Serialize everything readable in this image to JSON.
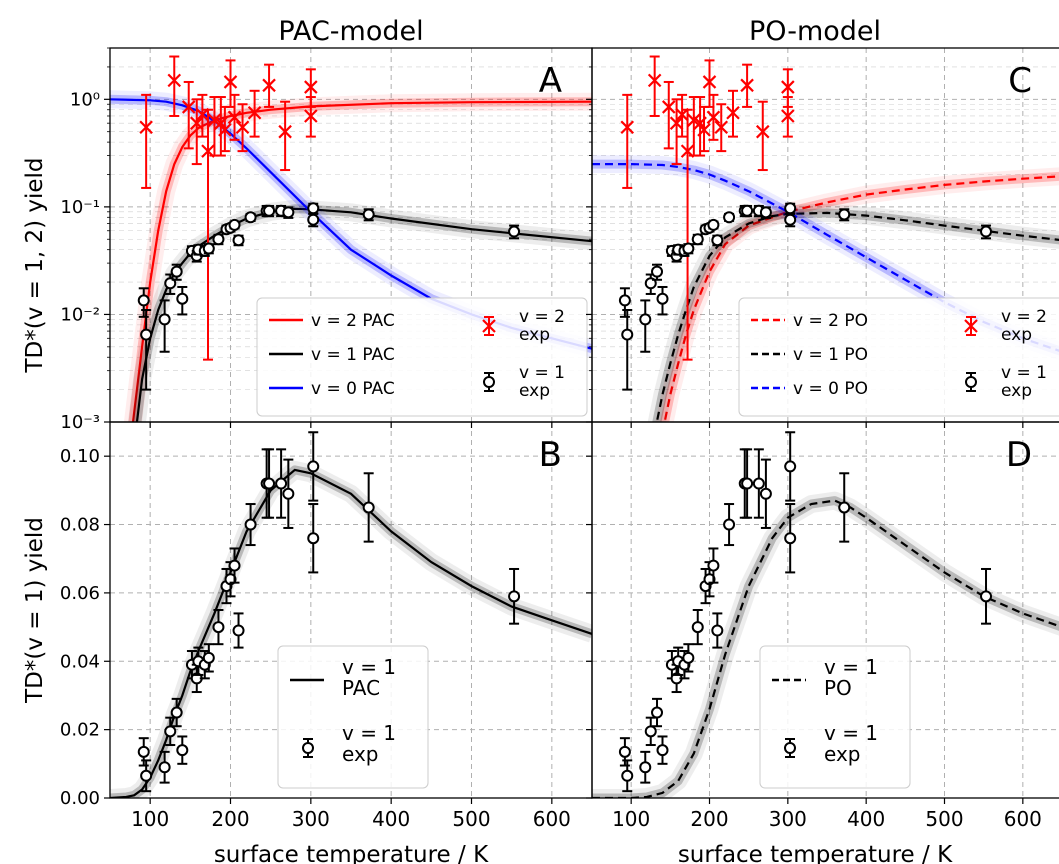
{
  "colors": {
    "red": "#ff0000",
    "black": "#000000",
    "blue": "#0000ff",
    "grid": "#b0b0b0"
  },
  "chart_data": [
    {
      "id": "A",
      "type": "line",
      "column_title": "PAC-model",
      "panel_letter": "A",
      "ylabel": "TD*(v = 1, 2) yield",
      "xlabel": "",
      "yscale": "log",
      "xlim": [
        50,
        650
      ],
      "ylim": [
        0.001,
        3
      ],
      "xticks": [
        100,
        200,
        300,
        400,
        500,
        600
      ],
      "yticks": [
        0.001,
        0.01,
        0.1,
        1
      ],
      "ytick_labels": [
        "10⁻³",
        "10⁻²",
        "10⁻¹",
        "10⁰"
      ],
      "grid": true,
      "legend_location": "lower right",
      "legend": [
        {
          "label": "v = 2 PAC",
          "color": "#ff0000",
          "style": "solid"
        },
        {
          "label": "v = 1 PAC",
          "color": "#000000",
          "style": "solid"
        },
        {
          "label": "v = 0 PAC",
          "color": "#0000ff",
          "style": "solid"
        },
        {
          "label": "v = 2 exp",
          "color": "#ff0000",
          "marker": "x"
        },
        {
          "label": "v = 1 exp",
          "color": "#000000",
          "marker": "o"
        }
      ],
      "series": [
        {
          "name": "v = 2 PAC",
          "color": "#ff0000",
          "dash": false,
          "band": true,
          "x": [
            75,
            90,
            100,
            110,
            120,
            130,
            140,
            150,
            160,
            180,
            200,
            220,
            250,
            300,
            400,
            500,
            650
          ],
          "y": [
            0.0006,
            0.005,
            0.02,
            0.06,
            0.14,
            0.25,
            0.36,
            0.46,
            0.54,
            0.64,
            0.7,
            0.75,
            0.8,
            0.86,
            0.92,
            0.94,
            0.95
          ]
        },
        {
          "name": "v = 1 PAC",
          "color": "#000000",
          "dash": false,
          "band": true,
          "x": [
            80,
            90,
            100,
            110,
            120,
            130,
            140,
            150,
            160,
            180,
            200,
            220,
            250,
            280,
            300,
            350,
            400,
            500,
            650
          ],
          "y": [
            0.0006,
            0.0025,
            0.006,
            0.011,
            0.017,
            0.024,
            0.03,
            0.037,
            0.043,
            0.054,
            0.066,
            0.078,
            0.09,
            0.096,
            0.095,
            0.089,
            0.078,
            0.062,
            0.048
          ]
        },
        {
          "name": "v = 0 PAC",
          "color": "#0000ff",
          "dash": false,
          "band": true,
          "x": [
            50,
            100,
            120,
            140,
            160,
            180,
            200,
            220,
            250,
            300,
            350,
            400,
            450,
            500,
            550,
            600,
            650
          ],
          "y": [
            1.0,
            0.98,
            0.95,
            0.88,
            0.78,
            0.63,
            0.48,
            0.35,
            0.21,
            0.09,
            0.04,
            0.023,
            0.014,
            0.01,
            0.0075,
            0.006,
            0.0048
          ]
        }
      ],
      "exp_v2": {
        "color": "#ff0000",
        "x": [
          95,
          130,
          148,
          158,
          165,
          172,
          180,
          188,
          193,
          200,
          205,
          215,
          230,
          248,
          268,
          300,
          300
        ],
        "y": [
          0.55,
          1.5,
          0.85,
          0.6,
          0.72,
          0.33,
          0.64,
          0.6,
          0.52,
          1.45,
          0.68,
          0.55,
          0.75,
          1.35,
          0.5,
          0.7,
          1.3
        ],
        "ylo": [
          0.15,
          0.7,
          0.35,
          0.25,
          0.45,
          0.0038,
          0.3,
          0.3,
          0.33,
          0.85,
          0.42,
          0.33,
          0.45,
          0.85,
          0.22,
          0.45,
          0.85
        ],
        "yhi": [
          1.1,
          2.5,
          1.45,
          1.0,
          1.1,
          0.8,
          1.05,
          1.05,
          0.85,
          2.3,
          1.1,
          0.9,
          1.2,
          2.1,
          0.95,
          1.05,
          1.9
        ]
      },
      "exp_v1": {
        "color": "#000000",
        "x": [
          92,
          95,
          118,
          125,
          133,
          140,
          152,
          158,
          160,
          168,
          173,
          185,
          195,
          200,
          205,
          210,
          225,
          245,
          248,
          263,
          272,
          303,
          303,
          372,
          553
        ],
        "y": [
          0.0135,
          0.0065,
          0.009,
          0.0195,
          0.025,
          0.014,
          0.039,
          0.035,
          0.04,
          0.039,
          0.041,
          0.05,
          0.062,
          0.064,
          0.068,
          0.049,
          0.08,
          0.092,
          0.092,
          0.092,
          0.089,
          0.097,
          0.076,
          0.085,
          0.059
        ],
        "err": [
          0.004,
          0.0045,
          0.0045,
          0.004,
          0.004,
          0.004,
          0.004,
          0.004,
          0.004,
          0.004,
          0.004,
          0.005,
          0.005,
          0.005,
          0.005,
          0.005,
          0.006,
          0.01,
          0.01,
          0.01,
          0.01,
          0.01,
          0.01,
          0.01,
          0.008
        ]
      }
    },
    {
      "id": "C",
      "type": "line",
      "column_title": "PO-model",
      "panel_letter": "C",
      "ylabel": "",
      "xlabel": "",
      "yscale": "log",
      "xlim": [
        50,
        650
      ],
      "ylim": [
        0.001,
        3
      ],
      "xticks": [
        100,
        200,
        300,
        400,
        500,
        600
      ],
      "yticks": [
        0.001,
        0.01,
        0.1,
        1
      ],
      "grid": true,
      "legend_location": "lower right",
      "legend": [
        {
          "label": "v = 2 PO",
          "color": "#ff0000",
          "style": "dashed"
        },
        {
          "label": "v = 1 PO",
          "color": "#000000",
          "style": "dashed"
        },
        {
          "label": "v = 0 PO",
          "color": "#0000ff",
          "style": "dashed"
        },
        {
          "label": "v = 2 exp",
          "color": "#ff0000",
          "marker": "x"
        },
        {
          "label": "v = 1 exp",
          "color": "#000000",
          "marker": "o"
        }
      ],
      "series": [
        {
          "name": "v = 2 PO",
          "color": "#ff0000",
          "dash": true,
          "band": true,
          "x": [
            140,
            150,
            160,
            170,
            180,
            200,
            220,
            250,
            280,
            300,
            350,
            400,
            450,
            500,
            550,
            600,
            650
          ],
          "y": [
            0.0008,
            0.0018,
            0.0035,
            0.0065,
            0.011,
            0.025,
            0.045,
            0.067,
            0.08,
            0.09,
            0.11,
            0.13,
            0.145,
            0.16,
            0.172,
            0.183,
            0.193
          ]
        },
        {
          "name": "v = 1 PO",
          "color": "#000000",
          "dash": true,
          "band": true,
          "x": [
            130,
            140,
            150,
            160,
            170,
            180,
            200,
            220,
            250,
            280,
            300,
            350,
            400,
            450,
            500,
            550,
            600,
            650
          ],
          "y": [
            0.0008,
            0.0018,
            0.0035,
            0.0065,
            0.011,
            0.018,
            0.035,
            0.052,
            0.07,
            0.082,
            0.086,
            0.088,
            0.083,
            0.075,
            0.067,
            0.06,
            0.054,
            0.049
          ]
        },
        {
          "name": "v = 0 PO",
          "color": "#0000ff",
          "dash": true,
          "band": true,
          "x": [
            50,
            100,
            140,
            160,
            180,
            200,
            220,
            250,
            300,
            350,
            400,
            450,
            500,
            550,
            600,
            650
          ],
          "y": [
            0.25,
            0.25,
            0.245,
            0.235,
            0.22,
            0.2,
            0.175,
            0.14,
            0.09,
            0.055,
            0.034,
            0.021,
            0.013,
            0.0085,
            0.006,
            0.0045
          ]
        }
      ],
      "exp_v2": {
        "color": "#ff0000",
        "x": [
          95,
          130,
          148,
          158,
          165,
          172,
          180,
          188,
          193,
          200,
          205,
          215,
          230,
          248,
          268,
          300,
          300
        ],
        "y": [
          0.55,
          1.5,
          0.85,
          0.6,
          0.72,
          0.33,
          0.64,
          0.6,
          0.52,
          1.45,
          0.68,
          0.55,
          0.75,
          1.35,
          0.5,
          0.7,
          1.3
        ],
        "ylo": [
          0.15,
          0.7,
          0.35,
          0.25,
          0.45,
          0.0038,
          0.3,
          0.3,
          0.33,
          0.85,
          0.42,
          0.33,
          0.45,
          0.85,
          0.22,
          0.45,
          0.85
        ],
        "yhi": [
          1.1,
          2.5,
          1.45,
          1.0,
          1.1,
          0.8,
          1.05,
          1.05,
          0.85,
          2.3,
          1.1,
          0.9,
          1.2,
          2.1,
          0.95,
          1.05,
          1.9
        ]
      },
      "exp_v1": {
        "color": "#000000",
        "x": [
          92,
          95,
          118,
          125,
          133,
          140,
          152,
          158,
          160,
          168,
          173,
          185,
          195,
          200,
          205,
          210,
          225,
          245,
          248,
          263,
          272,
          303,
          303,
          372,
          553
        ],
        "y": [
          0.0135,
          0.0065,
          0.009,
          0.0195,
          0.025,
          0.014,
          0.039,
          0.035,
          0.04,
          0.039,
          0.041,
          0.05,
          0.062,
          0.064,
          0.068,
          0.049,
          0.08,
          0.092,
          0.092,
          0.092,
          0.089,
          0.097,
          0.076,
          0.085,
          0.059
        ],
        "err": [
          0.004,
          0.0045,
          0.0045,
          0.004,
          0.004,
          0.004,
          0.004,
          0.004,
          0.004,
          0.004,
          0.004,
          0.005,
          0.005,
          0.005,
          0.005,
          0.005,
          0.006,
          0.01,
          0.01,
          0.01,
          0.01,
          0.01,
          0.01,
          0.01,
          0.008
        ]
      }
    },
    {
      "id": "B",
      "type": "line",
      "panel_letter": "B",
      "ylabel": "TD*(v = 1) yield",
      "xlabel": "surface temperature / K",
      "yscale": "linear",
      "xlim": [
        50,
        650
      ],
      "ylim": [
        0,
        0.11
      ],
      "xticks": [
        100,
        200,
        300,
        400,
        500,
        600
      ],
      "yticks": [
        0.0,
        0.02,
        0.04,
        0.06,
        0.08,
        0.1
      ],
      "ytick_labels": [
        "0.00",
        "0.02",
        "0.04",
        "0.06",
        "0.08",
        "0.10"
      ],
      "grid": true,
      "legend_location": "lower right",
      "legend": [
        {
          "label": "v = 1 PAC",
          "color": "#000000",
          "style": "solid"
        },
        {
          "label": "v = 1 exp",
          "color": "#000000",
          "marker": "o"
        }
      ],
      "series": [
        {
          "name": "v = 1 PAC",
          "color": "#000000",
          "dash": false,
          "band": true,
          "x": [
            50,
            70,
            80,
            90,
            100,
            110,
            120,
            130,
            140,
            150,
            160,
            180,
            200,
            220,
            250,
            280,
            300,
            350,
            400,
            450,
            500,
            550,
            600,
            650
          ],
          "y": [
            0.0,
            0.0003,
            0.0008,
            0.0025,
            0.006,
            0.011,
            0.017,
            0.024,
            0.03,
            0.037,
            0.043,
            0.054,
            0.066,
            0.078,
            0.09,
            0.096,
            0.095,
            0.089,
            0.078,
            0.069,
            0.062,
            0.056,
            0.052,
            0.048
          ]
        }
      ],
      "exp_v1": {
        "color": "#000000",
        "x": [
          92,
          95,
          118,
          125,
          133,
          140,
          152,
          158,
          160,
          168,
          173,
          185,
          195,
          200,
          205,
          210,
          225,
          245,
          248,
          263,
          272,
          303,
          303,
          372,
          553
        ],
        "y": [
          0.0135,
          0.0065,
          0.009,
          0.0195,
          0.025,
          0.014,
          0.039,
          0.035,
          0.04,
          0.039,
          0.041,
          0.05,
          0.062,
          0.064,
          0.068,
          0.049,
          0.08,
          0.092,
          0.092,
          0.092,
          0.089,
          0.097,
          0.076,
          0.085,
          0.059
        ],
        "err": [
          0.004,
          0.0045,
          0.0045,
          0.004,
          0.004,
          0.004,
          0.004,
          0.004,
          0.004,
          0.004,
          0.004,
          0.005,
          0.005,
          0.005,
          0.005,
          0.005,
          0.006,
          0.01,
          0.01,
          0.01,
          0.01,
          0.01,
          0.01,
          0.01,
          0.008
        ]
      }
    },
    {
      "id": "D",
      "type": "line",
      "panel_letter": "D",
      "ylabel": "",
      "xlabel": "surface temperature / K",
      "yscale": "linear",
      "xlim": [
        50,
        650
      ],
      "ylim": [
        0,
        0.11
      ],
      "xticks": [
        100,
        200,
        300,
        400,
        500,
        600
      ],
      "yticks": [
        0.0,
        0.02,
        0.04,
        0.06,
        0.08,
        0.1
      ],
      "grid": true,
      "legend_location": "lower right",
      "legend": [
        {
          "label": "v = 1 PO",
          "color": "#000000",
          "style": "dashed"
        },
        {
          "label": "v = 1 exp",
          "color": "#000000",
          "marker": "o"
        }
      ],
      "series": [
        {
          "name": "v = 1 PO",
          "color": "#000000",
          "dash": true,
          "band": true,
          "x": [
            50,
            100,
            120,
            140,
            160,
            180,
            200,
            220,
            250,
            280,
            300,
            330,
            360,
            380,
            400,
            450,
            500,
            550,
            600,
            650
          ],
          "y": [
            0.0,
            0.0,
            0.0003,
            0.0015,
            0.005,
            0.013,
            0.026,
            0.042,
            0.062,
            0.076,
            0.082,
            0.086,
            0.087,
            0.085,
            0.082,
            0.074,
            0.066,
            0.059,
            0.054,
            0.05
          ]
        }
      ],
      "exp_v1": {
        "color": "#000000",
        "x": [
          92,
          95,
          118,
          125,
          133,
          140,
          152,
          158,
          160,
          168,
          173,
          185,
          195,
          200,
          205,
          210,
          225,
          245,
          248,
          263,
          272,
          303,
          303,
          372,
          553
        ],
        "y": [
          0.0135,
          0.0065,
          0.009,
          0.0195,
          0.025,
          0.014,
          0.039,
          0.035,
          0.04,
          0.039,
          0.041,
          0.05,
          0.062,
          0.064,
          0.068,
          0.049,
          0.08,
          0.092,
          0.092,
          0.092,
          0.089,
          0.097,
          0.076,
          0.085,
          0.059
        ],
        "err": [
          0.004,
          0.0045,
          0.0045,
          0.004,
          0.004,
          0.004,
          0.004,
          0.004,
          0.004,
          0.004,
          0.004,
          0.005,
          0.005,
          0.005,
          0.005,
          0.005,
          0.006,
          0.01,
          0.01,
          0.01,
          0.01,
          0.01,
          0.01,
          0.01,
          0.008
        ]
      }
    }
  ]
}
